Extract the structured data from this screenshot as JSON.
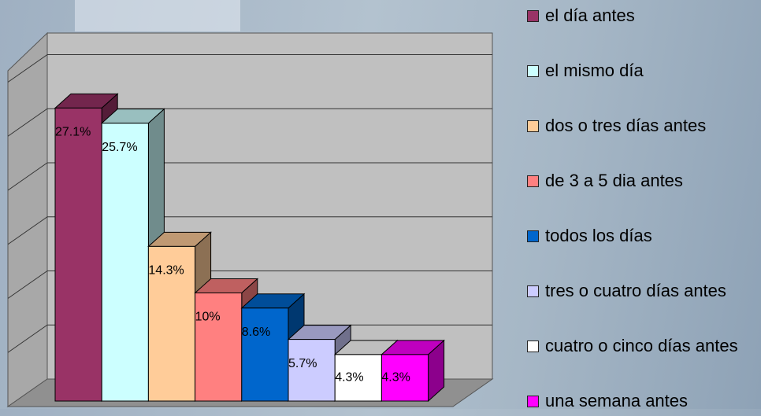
{
  "chart_data": {
    "type": "bar3d",
    "series": [
      {
        "name": "el día antes",
        "color": "#993366",
        "values": [
          27.1
        ],
        "value_labels": [
          "27.1%"
        ]
      },
      {
        "name": "el mismo día",
        "color": "#ccffff",
        "values": [
          25.7
        ],
        "value_labels": [
          "25.7%"
        ]
      },
      {
        "name": "dos o tres días antes",
        "color": "#ffcc99",
        "values": [
          14.3
        ],
        "value_labels": [
          "14.3%"
        ]
      },
      {
        "name": "de 3 a 5 dia antes",
        "color": "#ff8080",
        "values": [
          10
        ],
        "value_labels": [
          "10%"
        ]
      },
      {
        "name": "todos los días",
        "color": "#0066cc",
        "values": [
          8.6
        ],
        "value_labels": [
          "8.6%"
        ]
      },
      {
        "name": "tres o cuatro días antes",
        "color": "#ccccff",
        "values": [
          5.7
        ],
        "value_labels": [
          "5.7%"
        ]
      },
      {
        "name": "cuatro o cinco días antes",
        "color": "#ffffff",
        "values": [
          4.3
        ],
        "value_labels": [
          "4.3%"
        ]
      },
      {
        "name": "una semana antes",
        "color": "#ff00ff",
        "values": [
          4.3
        ],
        "value_labels": [
          "4.3%"
        ]
      }
    ],
    "ylim": [
      0,
      32
    ],
    "yticks": [
      0,
      5,
      10,
      15,
      20,
      25,
      30
    ],
    "grid": true,
    "legend": "right"
  }
}
